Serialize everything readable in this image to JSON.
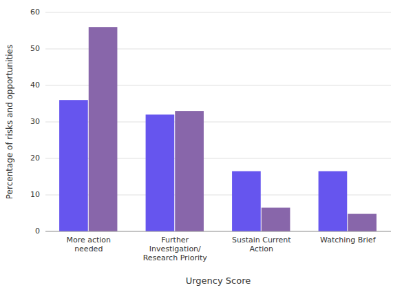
{
  "chart_data": {
    "type": "bar",
    "categories": [
      "More action\nneeded",
      "Further\nInvestigation/\nResearch Priority",
      "Sustain Current\nAction",
      "Watching Brief"
    ],
    "series": [
      {
        "color": "#6655ee",
        "values": [
          36,
          32,
          16.5,
          16.5
        ]
      },
      {
        "color": "#8866aa",
        "values": [
          56,
          33,
          6.5,
          4.8
        ]
      }
    ],
    "xlabel": "Urgency Score",
    "ylabel": "Percentage of risks and opportunities",
    "ylim": [
      0,
      60
    ],
    "yticks": [
      0,
      10,
      20,
      30,
      40,
      50,
      60
    ],
    "grid": true
  }
}
